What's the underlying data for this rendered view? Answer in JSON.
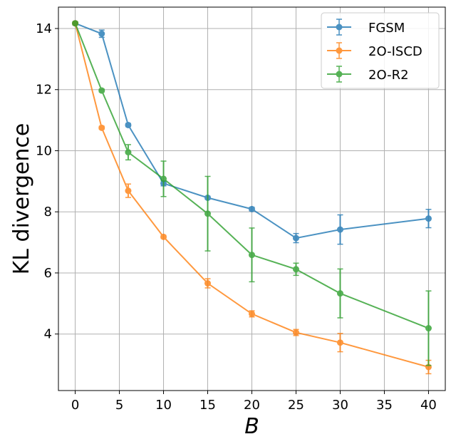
{
  "chart_data": {
    "type": "line",
    "title": "",
    "xlabel": "B",
    "ylabel": "KL divergence",
    "xlim": [
      -1.9,
      41.9
    ],
    "ylim": [
      2.15,
      14.7
    ],
    "xticks": [
      0,
      5,
      10,
      15,
      20,
      25,
      30,
      35,
      40
    ],
    "yticks": [
      4,
      6,
      8,
      10,
      12,
      14
    ],
    "grid": true,
    "legend_position": "top-right",
    "series": [
      {
        "name": "FGSM",
        "color": "#1f77b4",
        "x": [
          0,
          3,
          6,
          10,
          15,
          20,
          25,
          30,
          40
        ],
        "y": [
          14.17,
          13.83,
          10.84,
          8.93,
          8.46,
          8.09,
          7.14,
          7.42,
          7.78
        ],
        "err": [
          0.05,
          0.12,
          0.05,
          0.08,
          0.05,
          0.06,
          0.15,
          0.48,
          0.3
        ]
      },
      {
        "name": "2O-ISCD",
        "color": "#ff7f0e",
        "x": [
          0,
          3,
          6,
          10,
          15,
          20,
          25,
          30,
          40
        ],
        "y": [
          14.17,
          10.75,
          8.69,
          7.18,
          5.66,
          4.66,
          4.05,
          3.72,
          2.92
        ],
        "err": [
          0.05,
          0.05,
          0.22,
          0.05,
          0.15,
          0.1,
          0.1,
          0.3,
          0.22
        ]
      },
      {
        "name": "2O-R2",
        "color": "#2ca02c",
        "x": [
          0,
          3,
          6,
          10,
          15,
          20,
          25,
          30,
          40
        ],
        "y": [
          14.17,
          11.97,
          9.95,
          9.08,
          7.94,
          6.59,
          6.12,
          5.33,
          4.19
        ],
        "err": [
          0.05,
          0.05,
          0.25,
          0.58,
          1.22,
          0.88,
          0.2,
          0.8,
          1.22
        ]
      }
    ]
  }
}
